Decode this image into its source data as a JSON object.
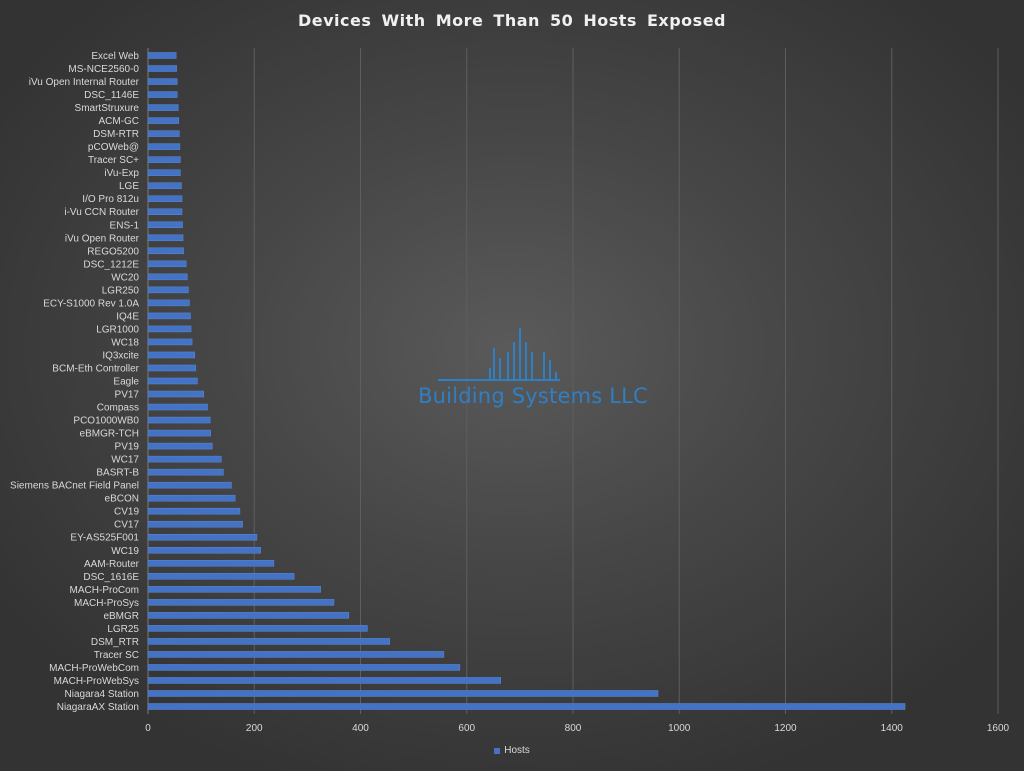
{
  "chart_data": {
    "type": "bar",
    "orientation": "horizontal",
    "title": "Devices With More Than 50 Hosts Exposed",
    "xlim": [
      0,
      1600
    ],
    "x_ticks": [
      0,
      200,
      400,
      600,
      800,
      1000,
      1200,
      1400,
      1600
    ],
    "grid": true,
    "legend_position": "bottom",
    "bar_color": "#4472c4",
    "categories": [
      "Excel Web",
      "MS-NCE2560-0",
      "iVu Open Internal Router",
      "DSC_1146E",
      "SmartStruxure",
      "ACM-GC",
      "DSM-RTR",
      "pCOWeb@",
      "Tracer SC+",
      "iVu-Exp",
      "LGE",
      "I/O Pro 812u",
      "i-Vu CCN Router",
      "ENS-1",
      "iVu Open Router",
      "REGO5200",
      "DSC_1212E",
      "WC20",
      "LGR250",
      "ECY-S1000 Rev 1.0A",
      "IQ4E",
      "LGR1000",
      "WC18",
      "IQ3xcite",
      "BCM-Eth Controller",
      "Eagle",
      "PV17",
      "Compass",
      "PCO1000WB0",
      "eBMGR-TCH",
      "PV19",
      "WC17",
      "BASRT-B",
      "Siemens BACnet Field Panel",
      "eBCON",
      "CV19",
      "CV17",
      "EY-AS525F001",
      "WC19",
      "AAM-Router",
      "DSC_1616E",
      "MACH-ProCom",
      "MACH-ProSys",
      "eBMGR",
      "LGR25",
      "DSM_RTR",
      "Tracer SC",
      "MACH-ProWebCom",
      "MACH-ProWebSys",
      "Niagara4 Station",
      "NiagaraAX Station"
    ],
    "series": [
      {
        "name": "Hosts",
        "values": [
          53,
          54,
          55,
          55,
          57,
          58,
          59,
          60,
          61,
          61,
          63,
          64,
          64,
          65,
          66,
          67,
          72,
          74,
          76,
          78,
          80,
          81,
          83,
          88,
          90,
          93,
          105,
          112,
          117,
          118,
          121,
          138,
          142,
          157,
          164,
          173,
          178,
          205,
          212,
          237,
          275,
          325,
          350,
          378,
          413,
          455,
          557,
          587,
          664,
          960,
          1425
        ]
      }
    ]
  },
  "watermark": {
    "text": "Building Systems LLC",
    "color": "#2f7fc4"
  }
}
